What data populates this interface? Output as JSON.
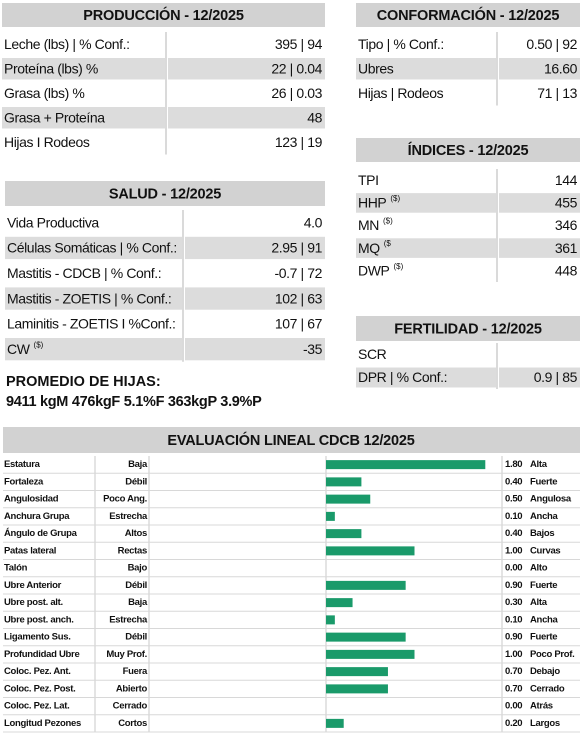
{
  "produccion": {
    "title": "PRODUCCIÓN - 12/2025",
    "rows": [
      {
        "label": "Leche (lbs) | % Conf.:",
        "value": "395 | 94"
      },
      {
        "label": "Proteína (lbs) %",
        "value": "22 | 0.04"
      },
      {
        "label": "Grasa (lbs) %",
        "value": "26 | 0.03"
      },
      {
        "label": "Grasa + Proteína",
        "value": "48"
      },
      {
        "label": "Hijas I Rodeos",
        "value": "123 | 19"
      }
    ]
  },
  "conformacion": {
    "title": "CONFORMACIÓN - 12/2025",
    "rows": [
      {
        "label": "Tipo | % Conf.:",
        "value": "0.50 | 92"
      },
      {
        "label": "Ubres",
        "value": "16.60"
      },
      {
        "label": "Hijas | Rodeos",
        "value": "71 | 13"
      }
    ]
  },
  "indices": {
    "title": "ÍNDICES - 12/2025",
    "rows": [
      {
        "label": "TPI",
        "value": "144"
      },
      {
        "label": "HHP",
        "sup": "($)",
        "value": "455"
      },
      {
        "label": "MN",
        "sup": "($)",
        "value": "346"
      },
      {
        "label": "MQ",
        "sup": "($",
        "value": "361"
      },
      {
        "label": "DWP",
        "sup": "($)",
        "value": "448"
      }
    ]
  },
  "salud": {
    "title": "SALUD - 12/2025",
    "rows": [
      {
        "label": "Vida Productiva",
        "value": "4.0"
      },
      {
        "label": "Células Somáticas | % Conf.:",
        "value": "2.95 | 91"
      },
      {
        "label": "Mastitis - CDCB | % Conf.:",
        "value": "-0.7 | 72"
      },
      {
        "label": "Mastitis - ZOETIS | % Conf.:",
        "value": "102 | 63"
      },
      {
        "label": "Laminitis - ZOETIS I %Conf.:",
        "value": "107 | 67"
      },
      {
        "label": "CW",
        "sup": "($)",
        "value": "-35"
      }
    ]
  },
  "fertilidad": {
    "title": "FERTILIDAD - 12/2025",
    "rows": [
      {
        "label": "SCR",
        "value": ""
      },
      {
        "label": "DPR | % Conf.:",
        "value": "0.9 | 85"
      }
    ]
  },
  "promedio": {
    "title": "PROMEDIO DE HIJAS:",
    "text": "9411 kgM 476kgF 5.1%F 363kgP 3.9%P"
  },
  "lineal": {
    "title": "EVALUACIÓN LINEAL CDCB 12/2025",
    "color": "#1a9a6a",
    "traits": [
      {
        "name": "Estatura",
        "low": "Baja",
        "value": 1.8,
        "value_label": "1.80",
        "high": "Alta"
      },
      {
        "name": "Fortaleza",
        "low": "Débil",
        "value": 0.4,
        "value_label": "0.40",
        "high": "Fuerte"
      },
      {
        "name": "Angulosidad",
        "low": "Poco Ang.",
        "value": 0.5,
        "value_label": "0.50",
        "high": "Angulosa"
      },
      {
        "name": "Anchura Grupa",
        "low": "Estrecha",
        "value": 0.1,
        "value_label": "0.10",
        "high": "Ancha"
      },
      {
        "name": "Ángulo de Grupa",
        "low": "Altos",
        "value": 0.4,
        "value_label": "0.40",
        "high": "Bajos"
      },
      {
        "name": "Patas lateral",
        "low": "Rectas",
        "value": 1,
        "value_label": "1.00",
        "high": "Curvas"
      },
      {
        "name": "Talón",
        "low": "Bajo",
        "value": 0,
        "value_label": "0.00",
        "high": "Alto"
      },
      {
        "name": "Ubre Anterior",
        "low": "Débil",
        "value": 0.9,
        "value_label": "0.90",
        "high": "Fuerte"
      },
      {
        "name": "Ubre post. alt.",
        "low": "Baja",
        "value": 0.3,
        "value_label": "0.30",
        "high": "Alta"
      },
      {
        "name": "Ubre post. anch.",
        "low": "Estrecha",
        "value": 0.1,
        "value_label": "0.10",
        "high": "Ancha"
      },
      {
        "name": "Ligamento Sus.",
        "low": "Débil",
        "value": 0.9,
        "value_label": "0.90",
        "high": "Fuerte"
      },
      {
        "name": "Profundidad Ubre",
        "low": "Muy Prof.",
        "value": 1,
        "value_label": "1.00",
        "high": "Poco Prof."
      },
      {
        "name": "Coloc. Pez. Ant.",
        "low": "Fuera",
        "value": 0.7,
        "value_label": "0.70",
        "high": "Debajo"
      },
      {
        "name": "Coloc. Pez. Post.",
        "low": "Abierto",
        "value": 0.7,
        "value_label": "0.70",
        "high": "Cerrado"
      },
      {
        "name": "Coloc. Pez. Lat.",
        "low": "Cerrado",
        "value": 0,
        "value_label": "0.00",
        "high": "Atrás"
      },
      {
        "name": "Longitud Pezones",
        "low": "Cortos",
        "value": 0.2,
        "value_label": "0.20",
        "high": "Largos"
      }
    ]
  }
}
